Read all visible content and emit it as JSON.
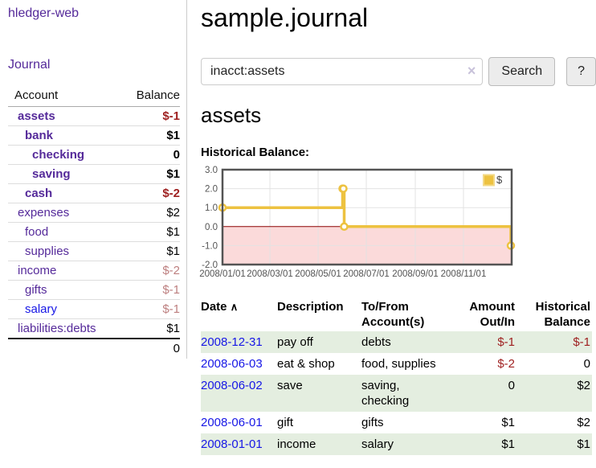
{
  "colors": {
    "link_purple": "#552a9a",
    "link_blue": "#1717e6",
    "negative_strong": "#9e1f1f",
    "negative_soft": "#bd7f7f",
    "row_stripe_green": "#e4eee0",
    "button_bg": "#ececec",
    "chart_line_gold": "#edc240",
    "chart_zero_line": "#8b0000",
    "chart_negative_fill": "#fbdada",
    "chart_border": "#545454"
  },
  "sidebar": {
    "title": "hledger-web",
    "journal_link": "Journal",
    "accounts_table": {
      "headers": [
        "Account",
        "Balance"
      ],
      "rows": [
        {
          "name": "assets",
          "indent": 0,
          "bold": true,
          "blue": false,
          "balance": "$-1",
          "balance_class": "neg-strong"
        },
        {
          "name": "bank",
          "indent": 1,
          "bold": true,
          "blue": false,
          "balance": "$1",
          "balance_class": ""
        },
        {
          "name": "checking",
          "indent": 2,
          "bold": true,
          "blue": false,
          "balance": "0",
          "balance_class": ""
        },
        {
          "name": "saving",
          "indent": 2,
          "bold": true,
          "blue": false,
          "balance": "$1",
          "balance_class": ""
        },
        {
          "name": "cash",
          "indent": 1,
          "bold": true,
          "blue": false,
          "balance": "$-2",
          "balance_class": "neg-strong"
        },
        {
          "name": "expenses",
          "indent": 0,
          "bold": false,
          "blue": false,
          "balance": "$2",
          "balance_class": ""
        },
        {
          "name": "food",
          "indent": 1,
          "bold": false,
          "blue": false,
          "balance": "$1",
          "balance_class": ""
        },
        {
          "name": "supplies",
          "indent": 1,
          "bold": false,
          "blue": false,
          "balance": "$1",
          "balance_class": ""
        },
        {
          "name": "income",
          "indent": 0,
          "bold": false,
          "blue": false,
          "balance": "$-2",
          "balance_class": "neg-soft"
        },
        {
          "name": "gifts",
          "indent": 1,
          "bold": false,
          "blue": false,
          "balance": "$-1",
          "balance_class": "neg-soft"
        },
        {
          "name": "salary",
          "indent": 1,
          "bold": false,
          "blue": true,
          "balance": "$-1",
          "balance_class": "neg-soft"
        },
        {
          "name": "liabilities:debts",
          "indent": 0,
          "bold": false,
          "blue": false,
          "balance": "$1",
          "balance_class": ""
        }
      ],
      "total": "0"
    }
  },
  "main": {
    "title": "sample.journal",
    "search": {
      "value": "inacct:assets",
      "clear_icon": "×",
      "search_label": "Search",
      "help_label": "?"
    },
    "account_heading": "assets",
    "chart_heading": "Historical Balance:"
  },
  "chart_data": {
    "type": "line",
    "mode": "steps",
    "title": "Historical Balance",
    "x_start": "2008-01-01",
    "x_span_days": 366,
    "ylim": [
      -2,
      3
    ],
    "yticks": [
      "3.0",
      "2.0",
      "1.0",
      "0.0",
      "-1.0",
      "-2.0"
    ],
    "xticks": [
      "2008/01/01",
      "2008/03/01",
      "2008/05/01",
      "2008/07/01",
      "2008/09/01",
      "2008/11/01"
    ],
    "grid": true,
    "legend_position": "top-right",
    "series": [
      {
        "name": "$",
        "color": "#edc240",
        "points": [
          {
            "x": "2008-01-01",
            "y": 1
          },
          {
            "x": "2008-06-01",
            "y": 2
          },
          {
            "x": "2008-06-02",
            "y": 2
          },
          {
            "x": "2008-06-03",
            "y": 0
          },
          {
            "x": "2008-12-31",
            "y": -1
          }
        ]
      }
    ]
  },
  "register": {
    "sort_icon": "∧",
    "columns": [
      {
        "label": "Date"
      },
      {
        "label": "Description"
      },
      {
        "label": "To/From Account(s)"
      },
      {
        "label": "Amount Out/In"
      },
      {
        "label": "Historical Balance"
      }
    ],
    "rows": [
      {
        "date": "2008-12-31",
        "description": "pay off",
        "accounts": "debts",
        "amount": "$-1",
        "amount_neg": true,
        "balance": "$-1",
        "balance_neg": true,
        "striped": true
      },
      {
        "date": "2008-06-03",
        "description": "eat & shop",
        "accounts": "food, supplies",
        "amount": "$-2",
        "amount_neg": true,
        "balance": "0",
        "balance_neg": false,
        "striped": false
      },
      {
        "date": "2008-06-02",
        "description": "save",
        "accounts": "saving, checking",
        "amount": "0",
        "amount_neg": false,
        "balance": "$2",
        "balance_neg": false,
        "striped": true
      },
      {
        "date": "2008-06-01",
        "description": "gift",
        "accounts": "gifts",
        "amount": "$1",
        "amount_neg": false,
        "balance": "$2",
        "balance_neg": false,
        "striped": false
      },
      {
        "date": "2008-01-01",
        "description": "income",
        "accounts": "salary",
        "amount": "$1",
        "amount_neg": false,
        "balance": "$1",
        "balance_neg": false,
        "striped": true
      }
    ]
  }
}
